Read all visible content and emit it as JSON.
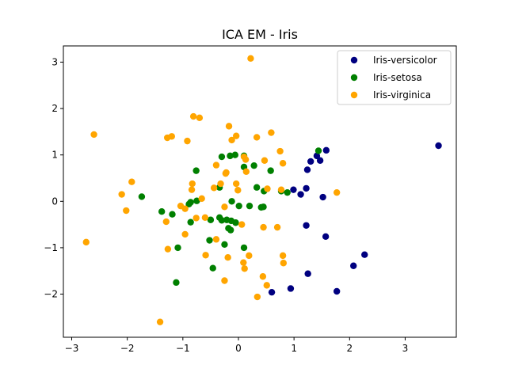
{
  "chart_data": {
    "type": "scatter",
    "title": "ICA EM - Iris",
    "xlabel": "",
    "ylabel": "",
    "xlim": [
      -3.15,
      3.92
    ],
    "ylim": [
      -2.93,
      3.35
    ],
    "xticks": [
      -3,
      -2,
      -1,
      0,
      1,
      2,
      3
    ],
    "yticks": [
      -2,
      -1,
      0,
      1,
      2,
      3
    ],
    "grid": false,
    "legend_position": "top-right",
    "series": [
      {
        "name": "Iris-versicolor",
        "color": "#000080",
        "points": [
          [
            3.6,
            1.2
          ],
          [
            1.58,
            1.1
          ],
          [
            1.47,
            0.88
          ],
          [
            1.3,
            0.86
          ],
          [
            1.24,
            0.68
          ],
          [
            1.41,
            0.98
          ],
          [
            1.12,
            0.15
          ],
          [
            1.22,
            0.28
          ],
          [
            1.52,
            0.09
          ],
          [
            0.99,
            0.25
          ],
          [
            1.22,
            -0.52
          ],
          [
            1.57,
            -0.76
          ],
          [
            2.27,
            -1.15
          ],
          [
            2.07,
            -1.39
          ],
          [
            1.25,
            -1.56
          ],
          [
            0.94,
            -1.88
          ],
          [
            1.77,
            -1.94
          ],
          [
            0.6,
            -1.96
          ]
        ]
      },
      {
        "name": "Iris-setosa",
        "color": "#008000",
        "points": [
          [
            1.44,
            1.09
          ],
          [
            -0.06,
            1.0
          ],
          [
            -0.15,
            0.98
          ],
          [
            0.1,
            0.98
          ],
          [
            -0.3,
            0.96
          ],
          [
            0.28,
            0.77
          ],
          [
            0.1,
            0.74
          ],
          [
            0.58,
            0.66
          ],
          [
            -0.76,
            0.66
          ],
          [
            0.33,
            0.3
          ],
          [
            0.77,
            0.22
          ],
          [
            0.88,
            0.19
          ],
          [
            -0.34,
            0.3
          ],
          [
            0.46,
            0.22
          ],
          [
            -1.74,
            0.1
          ],
          [
            -0.75,
            0.01
          ],
          [
            -0.86,
            -0.02
          ],
          [
            -0.89,
            -0.06
          ],
          [
            -0.12,
            0.0
          ],
          [
            0.01,
            -0.1
          ],
          [
            0.2,
            -0.1
          ],
          [
            0.41,
            -0.13
          ],
          [
            0.45,
            -0.12
          ],
          [
            -1.38,
            -0.22
          ],
          [
            -1.19,
            -0.28
          ],
          [
            -0.34,
            -0.35
          ],
          [
            -0.3,
            -0.41
          ],
          [
            -0.5,
            -0.4
          ],
          [
            -0.21,
            -0.4
          ],
          [
            -0.86,
            -0.45
          ],
          [
            -0.13,
            -0.42
          ],
          [
            -0.05,
            -0.46
          ],
          [
            -0.18,
            -0.58
          ],
          [
            -0.14,
            -0.62
          ],
          [
            -0.52,
            -0.84
          ],
          [
            -0.25,
            -0.93
          ],
          [
            -1.09,
            -1.0
          ],
          [
            0.1,
            -1.0
          ],
          [
            -0.46,
            -1.44
          ],
          [
            -1.12,
            -1.75
          ]
        ]
      },
      {
        "name": "Iris-virginica",
        "color": "#ffa500",
        "points": [
          [
            0.22,
            3.08
          ],
          [
            -2.6,
            1.44
          ],
          [
            -0.81,
            1.83
          ],
          [
            -0.7,
            1.8
          ],
          [
            -0.17,
            1.62
          ],
          [
            0.59,
            1.48
          ],
          [
            -1.2,
            1.4
          ],
          [
            -1.28,
            1.37
          ],
          [
            -0.04,
            1.41
          ],
          [
            0.33,
            1.38
          ],
          [
            -0.12,
            1.32
          ],
          [
            -0.92,
            1.3
          ],
          [
            0.75,
            1.08
          ],
          [
            0.1,
            0.96
          ],
          [
            0.13,
            0.9
          ],
          [
            0.47,
            0.88
          ],
          [
            0.8,
            0.82
          ],
          [
            -0.4,
            0.78
          ],
          [
            -0.22,
            0.62
          ],
          [
            0.14,
            0.64
          ],
          [
            -0.23,
            0.6
          ],
          [
            -1.92,
            0.42
          ],
          [
            -0.83,
            0.38
          ],
          [
            -0.04,
            0.38
          ],
          [
            -0.32,
            0.38
          ],
          [
            -0.44,
            0.29
          ],
          [
            -0.84,
            0.25
          ],
          [
            -0.01,
            0.24
          ],
          [
            0.52,
            0.27
          ],
          [
            0.77,
            0.25
          ],
          [
            1.77,
            0.19
          ],
          [
            -2.1,
            0.15
          ],
          [
            -0.66,
            0.06
          ],
          [
            -1.04,
            -0.1
          ],
          [
            -0.96,
            -0.16
          ],
          [
            -0.25,
            -0.12
          ],
          [
            -2.02,
            -0.2
          ],
          [
            -0.6,
            -0.35
          ],
          [
            -0.76,
            -0.36
          ],
          [
            0.06,
            -0.5
          ],
          [
            0.45,
            -0.56
          ],
          [
            0.7,
            -0.56
          ],
          [
            -1.3,
            -0.44
          ],
          [
            -0.96,
            -0.71
          ],
          [
            -2.74,
            -0.88
          ],
          [
            -0.4,
            -0.82
          ],
          [
            -1.27,
            -1.03
          ],
          [
            -0.59,
            -1.16
          ],
          [
            -0.19,
            -1.21
          ],
          [
            0.19,
            -1.17
          ],
          [
            0.8,
            -1.17
          ],
          [
            0.09,
            -1.32
          ],
          [
            0.81,
            -1.33
          ],
          [
            0.11,
            -1.45
          ],
          [
            0.44,
            -1.62
          ],
          [
            -0.25,
            -1.71
          ],
          [
            0.51,
            -1.81
          ],
          [
            0.34,
            -2.06
          ],
          [
            -1.41,
            -2.6
          ]
        ]
      }
    ]
  }
}
